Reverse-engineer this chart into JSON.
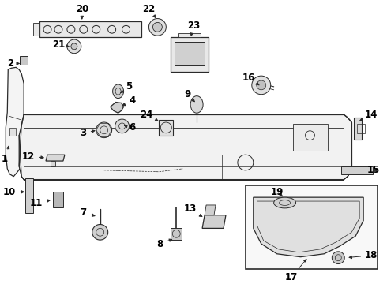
{
  "bg_color": "#ffffff",
  "line_color": "#2a2a2a",
  "label_color": "#000000",
  "font_size": 8.5,
  "line_width": 0.9,
  "fig_w": 4.9,
  "fig_h": 3.6,
  "dpi": 100
}
